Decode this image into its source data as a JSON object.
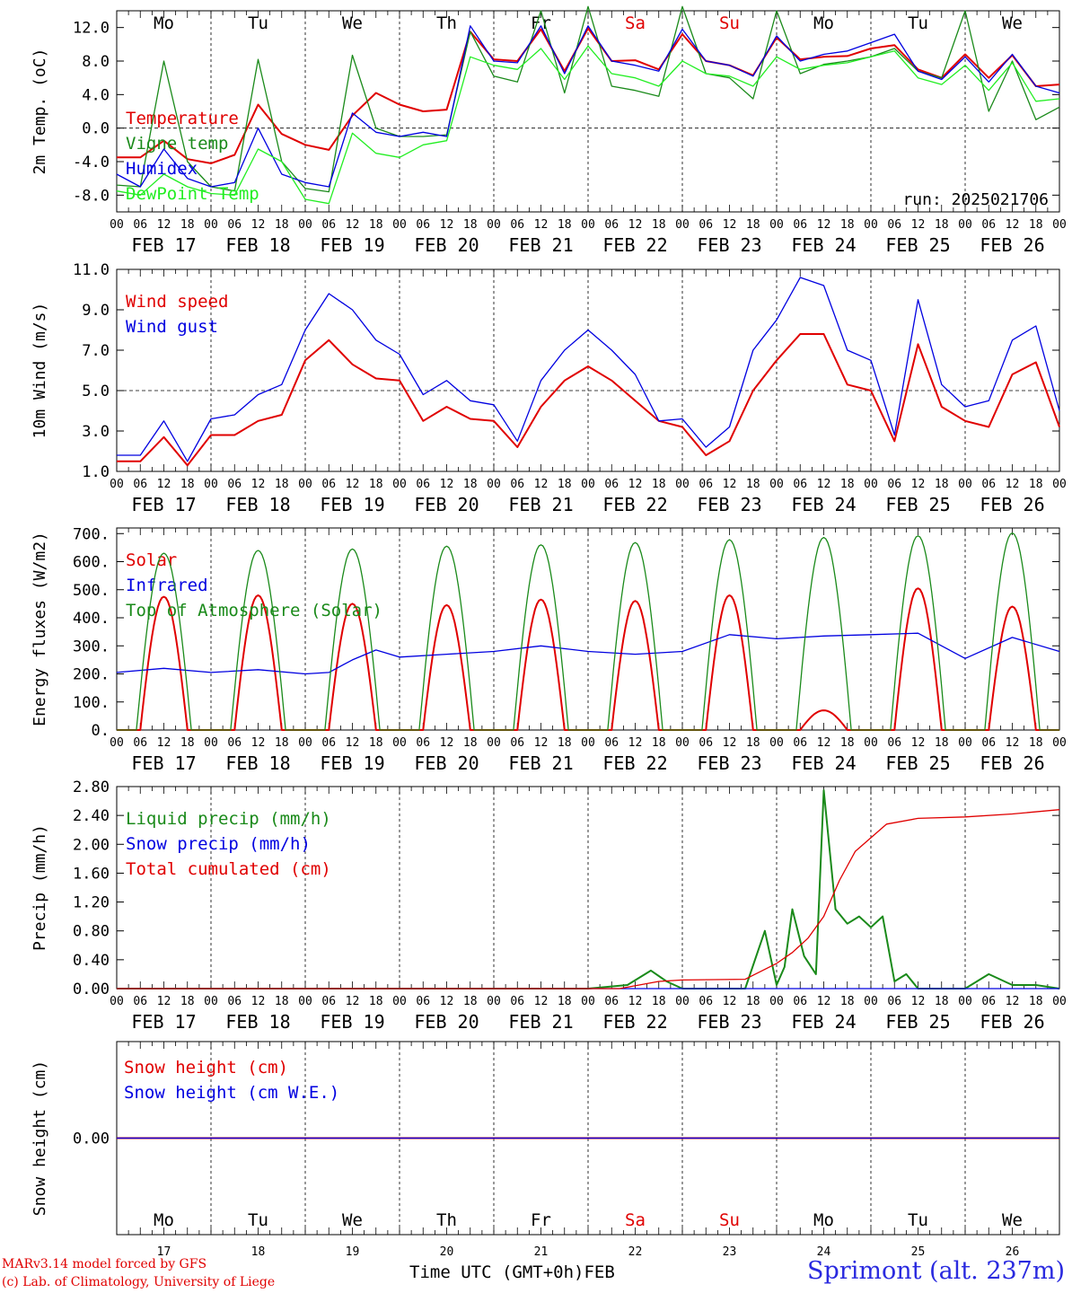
{
  "run_label": "run: 2025021706",
  "x_axis_label": "Time UTC (GMT+0h)",
  "footer": {
    "model": "MARv3.14 model forced by GFS",
    "credit": "(c) Lab. of Climatology, University of Liege",
    "site": "Sprimont (alt. 237m)"
  },
  "days": {
    "labels": [
      "FEB 17",
      "FEB 18",
      "FEB 19",
      "FEB 20",
      "FEB 21",
      "FEB 22",
      "FEB 23",
      "FEB 24",
      "FEB 25",
      "FEB 26"
    ],
    "weekday": [
      "Mo",
      "Tu",
      "We",
      "Th",
      "Fr",
      "Sa",
      "Su",
      "Mo",
      "Tu",
      "We"
    ],
    "weekend_color": "#e00000",
    "day_numbers": [
      "17",
      "18",
      "19",
      "20",
      "21",
      "22",
      "23",
      "24",
      "25",
      "26"
    ],
    "month": "FEB",
    "hour_ticks": [
      "00",
      "06",
      "12",
      "18"
    ]
  },
  "colors": {
    "red": "#e00000",
    "darkgreen": "#1a8a1a",
    "blue": "#0000e0",
    "lightgreen": "#22ee22",
    "frame": "#000000"
  },
  "chart_data": [
    {
      "type": "line",
      "ylabel": "2m Temp. (oC)",
      "ylim": [
        -10,
        14
      ],
      "ticks": [
        12.0,
        8.0,
        4.0,
        0.0,
        -4.0,
        -8.0
      ],
      "tick_decimals": 1,
      "dashed_at": 0,
      "x_unit": "hours since FEB 17 00 UTC",
      "series": [
        {
          "name": "Temperature",
          "color": "#e00000",
          "x": [
            0,
            6,
            12,
            18,
            24,
            30,
            36,
            42,
            48,
            54,
            60,
            66,
            72,
            78,
            84,
            90,
            96,
            102,
            108,
            114,
            120,
            126,
            132,
            138,
            144,
            150,
            156,
            162,
            168,
            174,
            180,
            186,
            192,
            198,
            204,
            210,
            216,
            222,
            228,
            234,
            240
          ],
          "values": [
            -3.5,
            -3.5,
            -1.5,
            -3.7,
            -4.2,
            -3.2,
            2.8,
            -0.7,
            -2.0,
            -2.6,
            1.5,
            4.2,
            2.8,
            2.0,
            2.2,
            11.5,
            8.2,
            8.0,
            11.8,
            6.8,
            11.9,
            8.0,
            8.1,
            7.0,
            11.2,
            8.0,
            7.5,
            6.3,
            10.8,
            8.2,
            8.5,
            8.6,
            9.5,
            9.9,
            7.0,
            6.0,
            8.8,
            6.0,
            8.7,
            5.0,
            5.2
          ]
        },
        {
          "name": "Vigne temp",
          "color": "#1a8a1a",
          "x": [
            0,
            6,
            12,
            18,
            24,
            30,
            36,
            42,
            48,
            54,
            60,
            66,
            72,
            78,
            84,
            90,
            96,
            102,
            108,
            114,
            120,
            126,
            132,
            138,
            144,
            150,
            156,
            162,
            168,
            174,
            180,
            186,
            192,
            198,
            204,
            210,
            216,
            222,
            228,
            234,
            240
          ],
          "values": [
            -6.8,
            -7.0,
            8.0,
            -4.0,
            -7.0,
            -7.5,
            8.2,
            -4.0,
            -7.2,
            -7.6,
            8.7,
            0.0,
            -1.0,
            -1.0,
            -0.8,
            11.5,
            6.2,
            5.5,
            14.0,
            4.2,
            14.5,
            5.0,
            4.5,
            3.8,
            14.5,
            6.5,
            6.0,
            3.5,
            14.0,
            6.5,
            7.6,
            8.0,
            8.5,
            9.5,
            6.8,
            6.0,
            14.0,
            2.0,
            8.0,
            1.0,
            2.5
          ]
        },
        {
          "name": "Humidex",
          "color": "#0000e0",
          "x": [
            0,
            6,
            12,
            18,
            24,
            30,
            36,
            42,
            48,
            54,
            60,
            66,
            72,
            78,
            84,
            90,
            96,
            102,
            108,
            114,
            120,
            126,
            132,
            138,
            144,
            150,
            156,
            162,
            168,
            174,
            180,
            186,
            192,
            198,
            204,
            210,
            216,
            222,
            228,
            234,
            240
          ],
          "values": [
            -5.5,
            -7.0,
            -2.5,
            -6.0,
            -7.0,
            -6.5,
            0.0,
            -5.5,
            -6.5,
            -7.0,
            1.8,
            -0.5,
            -1.0,
            -0.5,
            -1.0,
            12.2,
            8.0,
            7.8,
            12.2,
            6.5,
            12.2,
            8.0,
            7.5,
            6.8,
            11.8,
            8.0,
            7.5,
            6.2,
            11.0,
            8.0,
            8.8,
            9.2,
            10.2,
            11.2,
            6.8,
            5.8,
            8.5,
            5.5,
            8.8,
            5.0,
            4.2
          ]
        },
        {
          "name": "DewPoint Temp",
          "color": "#22ee22",
          "x": [
            0,
            6,
            12,
            18,
            24,
            30,
            36,
            42,
            48,
            54,
            60,
            66,
            72,
            78,
            84,
            90,
            96,
            102,
            108,
            114,
            120,
            126,
            132,
            138,
            144,
            150,
            156,
            162,
            168,
            174,
            180,
            186,
            192,
            198,
            204,
            210,
            216,
            222,
            228,
            234,
            240
          ],
          "values": [
            -7.5,
            -8.0,
            -5.5,
            -7.0,
            -7.8,
            -8.0,
            -2.5,
            -4.0,
            -8.5,
            -9.0,
            -0.6,
            -3.0,
            -3.5,
            -2.0,
            -1.5,
            8.5,
            7.5,
            7.0,
            9.5,
            5.8,
            9.8,
            6.5,
            6.0,
            5.0,
            8.0,
            6.5,
            6.2,
            5.0,
            8.5,
            7.0,
            7.5,
            7.8,
            8.5,
            9.2,
            6.0,
            5.2,
            7.5,
            4.5,
            7.8,
            3.2,
            3.5
          ]
        }
      ]
    },
    {
      "type": "line",
      "ylabel": "10m Wind (m/s)",
      "ylim": [
        1,
        11
      ],
      "ticks": [
        11.0,
        9.0,
        7.0,
        5.0,
        3.0,
        1.0
      ],
      "tick_decimals": 1,
      "dashed_at": 5,
      "x_unit": "hours since FEB 17 00 UTC",
      "series": [
        {
          "name": "Wind speed",
          "color": "#e00000",
          "x": [
            0,
            6,
            12,
            18,
            24,
            30,
            36,
            42,
            48,
            54,
            60,
            66,
            72,
            78,
            84,
            90,
            96,
            102,
            108,
            114,
            120,
            126,
            132,
            138,
            144,
            150,
            156,
            162,
            168,
            174,
            180,
            186,
            192,
            198,
            204,
            210,
            216,
            222,
            228,
            234,
            240
          ],
          "values": [
            1.5,
            1.5,
            2.7,
            1.3,
            2.8,
            2.8,
            3.5,
            3.8,
            6.5,
            7.5,
            6.3,
            5.6,
            5.5,
            3.5,
            4.2,
            3.6,
            3.5,
            2.2,
            4.2,
            5.5,
            6.2,
            5.5,
            4.5,
            3.5,
            3.2,
            1.8,
            2.5,
            5.0,
            6.5,
            7.8,
            7.8,
            5.3,
            5.0,
            2.5,
            7.3,
            4.2,
            3.5,
            3.2,
            5.8,
            6.4,
            3.2
          ]
        },
        {
          "name": "Wind gust",
          "color": "#0000e0",
          "x": [
            0,
            6,
            12,
            18,
            24,
            30,
            36,
            42,
            48,
            54,
            60,
            66,
            72,
            78,
            84,
            90,
            96,
            102,
            108,
            114,
            120,
            126,
            132,
            138,
            144,
            150,
            156,
            162,
            168,
            174,
            180,
            186,
            192,
            198,
            204,
            210,
            216,
            222,
            228,
            234,
            240
          ],
          "values": [
            1.8,
            1.8,
            3.5,
            1.5,
            3.6,
            3.8,
            4.8,
            5.3,
            8.0,
            9.8,
            9.0,
            7.5,
            6.8,
            4.8,
            5.5,
            4.5,
            4.3,
            2.5,
            5.5,
            7.0,
            8.0,
            7.0,
            5.8,
            3.5,
            3.6,
            2.2,
            3.2,
            7.0,
            8.5,
            10.6,
            10.2,
            7.0,
            6.5,
            2.8,
            9.5,
            5.3,
            4.2,
            4.5,
            7.5,
            8.2,
            4.0
          ]
        }
      ]
    },
    {
      "type": "line",
      "ylabel": "Energy fluxes (W/m2)",
      "ylim": [
        0,
        720
      ],
      "ticks": [
        700,
        600,
        500,
        400,
        300,
        200,
        100,
        0
      ],
      "tick_decimals": 0,
      "tick_suffix": ".",
      "dashed_at": null,
      "x_unit": "hours since FEB 17 00 UTC",
      "series": [
        {
          "name": "Solar",
          "color": "#e00000",
          "diurnal": true,
          "peaks": [
            475,
            480,
            450,
            445,
            465,
            460,
            480,
            70,
            505,
            440
          ]
        },
        {
          "name": "Infrared",
          "color": "#0000e0",
          "x": [
            0,
            12,
            24,
            36,
            48,
            54,
            60,
            66,
            72,
            84,
            96,
            108,
            120,
            132,
            144,
            156,
            168,
            180,
            192,
            204,
            210,
            216,
            228,
            240
          ],
          "values": [
            205,
            220,
            205,
            215,
            200,
            205,
            250,
            285,
            260,
            270,
            280,
            300,
            280,
            270,
            280,
            340,
            325,
            335,
            340,
            345,
            300,
            255,
            330,
            280
          ]
        },
        {
          "name": "Top of Atmosphere (Solar)",
          "color": "#1a8a1a",
          "diurnal": true,
          "peaks": [
            630,
            640,
            645,
            655,
            660,
            668,
            678,
            686,
            692,
            702
          ]
        }
      ]
    },
    {
      "type": "line",
      "ylabel": "Precip (mm/h)",
      "ylim": [
        0,
        2.8
      ],
      "ticks": [
        2.8,
        2.4,
        2.0,
        1.6,
        1.2,
        0.8,
        0.4,
        0.0
      ],
      "tick_decimals": 2,
      "dashed_at": null,
      "x_unit": "hours since FEB 17 00 UTC",
      "series": [
        {
          "name": "Liquid precip (mm/h)",
          "color": "#1a8a1a",
          "x": [
            0,
            120,
            130,
            136,
            140,
            144,
            160,
            165,
            168,
            170,
            172,
            175,
            178,
            180,
            183,
            186,
            189,
            192,
            195,
            198,
            201,
            204,
            210,
            216,
            222,
            228,
            234,
            240
          ],
          "values": [
            0,
            0,
            0.05,
            0.25,
            0.1,
            0,
            0,
            0.8,
            0.05,
            0.3,
            1.1,
            0.45,
            0.2,
            2.75,
            1.1,
            0.9,
            1.0,
            0.85,
            1.0,
            0.1,
            0.2,
            0,
            0,
            0,
            0.2,
            0.05,
            0.05,
            0
          ]
        },
        {
          "name": "Snow precip (mm/h)",
          "color": "#0000e0",
          "x": [
            0,
            240
          ],
          "values": [
            0,
            0
          ]
        },
        {
          "name": "Total cumulated (cm)",
          "color": "#e00000",
          "x": [
            0,
            128,
            138,
            144,
            160,
            168,
            172,
            176,
            180,
            184,
            188,
            196,
            204,
            216,
            228,
            240
          ],
          "values": [
            0,
            0,
            0.1,
            0.12,
            0.13,
            0.35,
            0.5,
            0.7,
            1.0,
            1.5,
            1.9,
            2.28,
            2.36,
            2.38,
            2.42,
            2.48
          ]
        }
      ]
    },
    {
      "type": "line",
      "ylabel": "Snow height (cm)",
      "ylim": [
        -1,
        1
      ],
      "ticks": [
        0.0
      ],
      "tick_decimals": 2,
      "dashed_at": null,
      "x_unit": "hours since FEB 17 00 UTC",
      "series": [
        {
          "name": "Snow height (cm)",
          "color": "#e00000",
          "x": [
            0,
            240
          ],
          "values": [
            0,
            0
          ]
        },
        {
          "name": "Snow height (cm W.E.)",
          "color": "#0000e0",
          "x": [
            0,
            240
          ],
          "values": [
            0,
            0
          ]
        }
      ]
    }
  ]
}
